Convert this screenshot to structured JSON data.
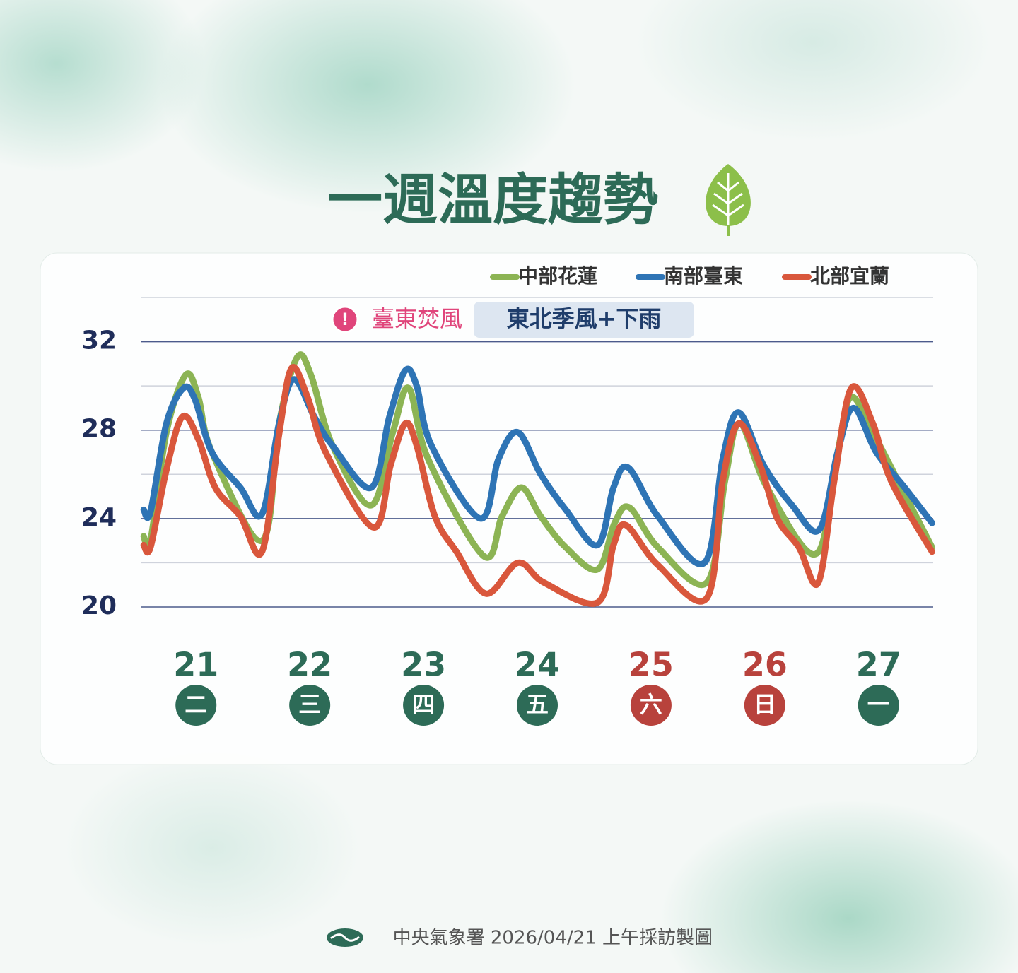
{
  "chart_data": {
    "type": "line",
    "title": "一週溫度趨勢",
    "xlim": [
      20.52,
      27.48
    ],
    "xticks": [
      21,
      22,
      23,
      24,
      25,
      26,
      27
    ],
    "xtick_sublabels": [
      "二",
      "三",
      "四",
      "五",
      "六",
      "日",
      "一"
    ],
    "xtick_colors": [
      "#2d6b57",
      "#2d6b57",
      "#2d6b57",
      "#2d6b57",
      "#b8423c",
      "#b8423c",
      "#2d6b57"
    ],
    "ylim": [
      20,
      34
    ],
    "yticks": [
      20,
      24,
      28,
      32
    ],
    "minor_yticks": [
      22,
      26,
      30,
      34
    ],
    "grid": true,
    "annotations": [
      {
        "text": "臺東焚風",
        "color": "#e0457b"
      },
      {
        "text": "東北季風+下雨",
        "color": "#1f3d6b"
      }
    ],
    "series": [
      {
        "name": "中部花蓮",
        "color": "#8cb454",
        "x": [
          20.54,
          20.6,
          20.74,
          20.91,
          21.02,
          21.14,
          21.58,
          21.73,
          21.89,
          22.01,
          22.2,
          22.54,
          22.73,
          22.87,
          23.04,
          23.53,
          23.69,
          23.86,
          24.03,
          24.25,
          24.53,
          24.68,
          24.81,
          25.06,
          25.49,
          25.65,
          25.78,
          26.02,
          26.45,
          26.64,
          26.76,
          26.98,
          27.23,
          27.47
        ],
        "values": [
          23.2,
          23.0,
          27.9,
          30.5,
          29.5,
          27.0,
          23.0,
          28.3,
          31.3,
          30.5,
          27.3,
          24.6,
          27.9,
          29.9,
          26.7,
          22.3,
          24.1,
          25.4,
          24.1,
          22.7,
          21.7,
          23.8,
          24.5,
          22.7,
          21.1,
          25.7,
          28.3,
          25.4,
          22.4,
          27.0,
          29.5,
          27.6,
          25.1,
          22.7
        ]
      },
      {
        "name": "南部臺東",
        "color": "#2e74b5",
        "x": [
          20.54,
          20.6,
          20.74,
          20.89,
          20.99,
          21.14,
          21.39,
          21.58,
          21.73,
          21.86,
          22.04,
          22.2,
          22.54,
          22.7,
          22.84,
          22.94,
          23.07,
          23.5,
          23.66,
          23.83,
          24.03,
          24.25,
          24.53,
          24.67,
          24.8,
          25.06,
          25.47,
          25.63,
          25.77,
          25.99,
          26.24,
          26.48,
          26.64,
          26.78,
          26.98,
          27.23,
          27.47
        ],
        "values": [
          24.4,
          24.3,
          28.3,
          29.9,
          29.4,
          27.0,
          25.4,
          24.2,
          28.3,
          30.3,
          28.6,
          27.3,
          25.4,
          28.6,
          30.7,
          30.0,
          27.3,
          24.0,
          26.7,
          27.9,
          26.0,
          24.4,
          22.8,
          25.4,
          26.3,
          24.1,
          22.0,
          26.7,
          28.8,
          26.4,
          24.6,
          23.5,
          27.0,
          29.0,
          27.0,
          25.4,
          23.8
        ]
      },
      {
        "name": "北部宜蘭",
        "color": "#d9573c",
        "x": [
          20.54,
          20.6,
          20.74,
          20.88,
          21.02,
          21.17,
          21.39,
          21.58,
          21.73,
          21.84,
          21.98,
          22.14,
          22.56,
          22.71,
          22.84,
          22.94,
          23.1,
          23.29,
          23.55,
          23.83,
          24.06,
          24.53,
          24.67,
          24.78,
          25.06,
          25.49,
          25.63,
          25.77,
          25.96,
          26.11,
          26.3,
          26.47,
          26.61,
          26.76,
          26.95,
          27.11,
          27.47
        ],
        "values": [
          22.8,
          22.7,
          26.2,
          28.6,
          27.6,
          25.4,
          24.1,
          22.5,
          27.8,
          30.8,
          29.5,
          27.0,
          23.6,
          26.4,
          28.3,
          27.3,
          24.1,
          22.5,
          20.6,
          22.0,
          21.1,
          20.2,
          22.8,
          23.7,
          21.9,
          20.4,
          25.7,
          28.3,
          26.4,
          24.0,
          22.7,
          21.1,
          25.7,
          29.9,
          28.3,
          25.7,
          22.5
        ]
      }
    ]
  },
  "footer": "中央氣象署 2026/04/21 上午採訪製圖"
}
